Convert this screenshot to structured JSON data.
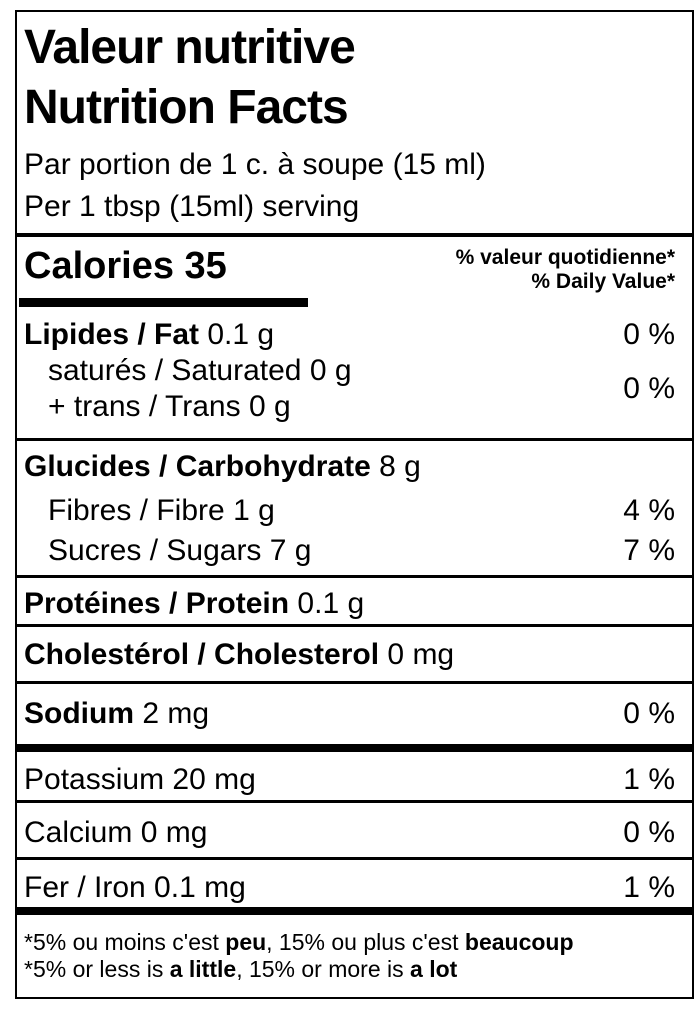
{
  "label": {
    "title_fr": "Valeur nutritive",
    "title_en": "Nutrition Facts",
    "serving_fr": "Par portion de 1 c. à soupe (15 ml)",
    "serving_en": "Per 1 tbsp (15ml) serving",
    "calories": {
      "label": "Calories",
      "value": "35"
    },
    "dv_header_fr": "% valeur quotidienne*",
    "dv_header_en": "% Daily Value*",
    "nutrients": {
      "fat": {
        "label": "Lipides / Fat",
        "amount": "0.1 g",
        "dv": "0 %"
      },
      "saturated": {
        "label": "saturés / Saturated",
        "amount": "0 g"
      },
      "trans": {
        "label": "+ trans / Trans",
        "amount": "0 g",
        "dv": "0 %"
      },
      "carbohydrate": {
        "label": "Glucides / Carbohydrate",
        "amount": "8 g"
      },
      "fibre": {
        "label": "Fibres / Fibre",
        "amount": "1 g",
        "dv": "4 %"
      },
      "sugars": {
        "label": "Sucres / Sugars",
        "amount": "7 g",
        "dv": "7 %"
      },
      "protein": {
        "label": "Protéines / Protein",
        "amount": "0.1 g"
      },
      "cholesterol": {
        "label": "Cholestérol / Cholesterol",
        "amount": "0 mg"
      },
      "sodium": {
        "label": "Sodium",
        "amount": "2 mg",
        "dv": "0 %"
      },
      "potassium": {
        "label": "Potassium",
        "amount": "20 mg",
        "dv": "1 %"
      },
      "calcium": {
        "label": "Calcium",
        "amount": "0 mg",
        "dv": "0 %"
      },
      "iron": {
        "label": "Fer / Iron",
        "amount": "0.1 mg",
        "dv": "1 %"
      }
    },
    "footnote_fr": {
      "pre": "*5% ou moins c'est ",
      "bold1": "peu",
      "mid": ", 15% ou plus c'est ",
      "bold2": "beaucoup"
    },
    "footnote_en": {
      "pre": "*5% or less is ",
      "bold1": "a little",
      "mid": ", 15% or more is ",
      "bold2": "a lot"
    },
    "colors": {
      "ink": "#000000",
      "paper": "#ffffff"
    }
  }
}
